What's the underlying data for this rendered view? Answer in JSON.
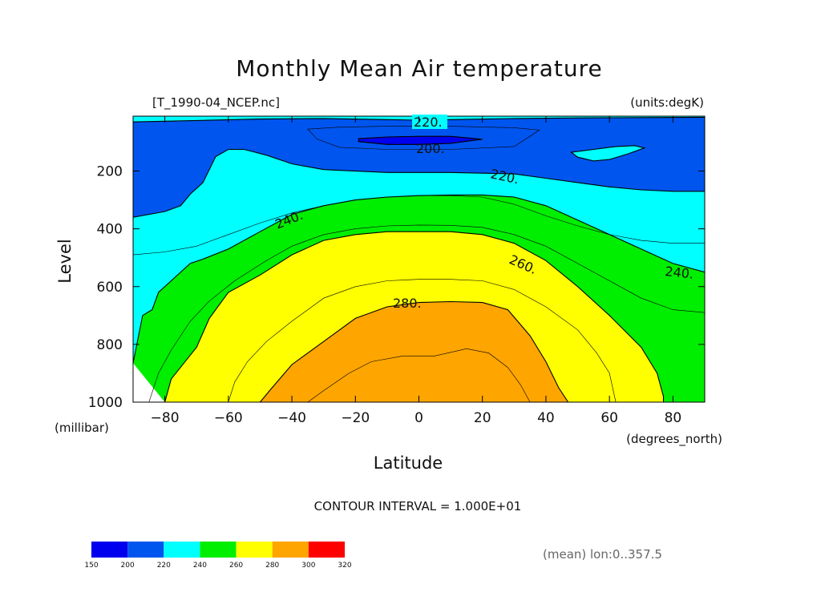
{
  "chart_data": {
    "type": "contour",
    "title": "Monthly Mean Air temperature",
    "file_label": "[T_1990-04_NCEP.nc]",
    "units_label": "(units:degK)",
    "xlabel": "Latitude",
    "ylabel": "Level",
    "x_units": "(degrees_north)",
    "y_units": "(millibar)",
    "xlim": [
      -90,
      90
    ],
    "ylim": [
      1000,
      10
    ],
    "x_ticks": [
      -80,
      -60,
      -40,
      -20,
      0,
      20,
      40,
      60,
      80
    ],
    "x_tick_labels": [
      "−80",
      "−60",
      "−40",
      "−20",
      "0",
      "20",
      "40",
      "60",
      "80"
    ],
    "y_ticks": [
      200,
      400,
      600,
      800,
      1000
    ],
    "y_tick_labels": [
      "200",
      "400",
      "600",
      "800",
      "1000"
    ],
    "contour_interval": "CONTOUR INTERVAL = 1.000E+01",
    "mean_note": "(mean) lon:0..357.5",
    "contour_labels": [
      "220.",
      "200.",
      "220.",
      "240.",
      "260.",
      "240.",
      "280."
    ],
    "levels": [
      {
        "lo": 150,
        "hi": 200,
        "color": "#0000ee"
      },
      {
        "lo": 200,
        "hi": 220,
        "color": "#0055ee"
      },
      {
        "lo": 220,
        "hi": 240,
        "color": "#00ffff"
      },
      {
        "lo": 240,
        "hi": 260,
        "color": "#00ee00"
      },
      {
        "lo": 260,
        "hi": 280,
        "color": "#ffff00"
      },
      {
        "lo": 280,
        "hi": 300,
        "color": "#ffa500"
      },
      {
        "lo": 300,
        "hi": 320,
        "color": "#ff0000"
      }
    ],
    "colorbar_labels": [
      "150",
      "200",
      "220",
      "240",
      "260",
      "280",
      "300",
      "320"
    ],
    "boundaries": {
      "b220_top": [
        [
          -90,
          30
        ],
        [
          -70,
          25
        ],
        [
          -50,
          20
        ],
        [
          -30,
          18
        ],
        [
          -10,
          22
        ],
        [
          0,
          24
        ],
        [
          10,
          22
        ],
        [
          30,
          18
        ],
        [
          50,
          16
        ],
        [
          70,
          15
        ],
        [
          90,
          14
        ]
      ],
      "b220_low": [
        [
          -90,
          360
        ],
        [
          -80,
          340
        ],
        [
          -75,
          320
        ],
        [
          -72,
          280
        ],
        [
          -68,
          240
        ],
        [
          -64,
          150
        ],
        [
          -60,
          125
        ],
        [
          -55,
          125
        ],
        [
          -48,
          145
        ],
        [
          -40,
          175
        ],
        [
          -30,
          195
        ],
        [
          -10,
          205
        ],
        [
          10,
          205
        ],
        [
          30,
          210
        ],
        [
          40,
          225
        ],
        [
          50,
          240
        ],
        [
          60,
          255
        ],
        [
          70,
          265
        ],
        [
          80,
          270
        ],
        [
          90,
          270
        ]
      ],
      "b240": [
        [
          -90,
          865
        ],
        [
          -87,
          700
        ],
        [
          -84,
          680
        ],
        [
          -82,
          620
        ],
        [
          -77,
          570
        ],
        [
          -72,
          520
        ],
        [
          -68,
          505
        ],
        [
          -60,
          470
        ],
        [
          -50,
          410
        ],
        [
          -40,
          350
        ],
        [
          -30,
          320
        ],
        [
          -20,
          300
        ],
        [
          -10,
          290
        ],
        [
          0,
          285
        ],
        [
          10,
          283
        ],
        [
          20,
          283
        ],
        [
          30,
          290
        ],
        [
          40,
          320
        ],
        [
          50,
          370
        ],
        [
          60,
          420
        ],
        [
          70,
          470
        ],
        [
          80,
          520
        ],
        [
          90,
          550
        ]
      ],
      "b260": [
        [
          -80,
          1000
        ],
        [
          -78,
          920
        ],
        [
          -70,
          810
        ],
        [
          -66,
          710
        ],
        [
          -60,
          620
        ],
        [
          -50,
          560
        ],
        [
          -40,
          490
        ],
        [
          -30,
          440
        ],
        [
          -20,
          420
        ],
        [
          -10,
          410
        ],
        [
          0,
          410
        ],
        [
          10,
          410
        ],
        [
          20,
          420
        ],
        [
          30,
          450
        ],
        [
          40,
          510
        ],
        [
          50,
          600
        ],
        [
          60,
          700
        ],
        [
          70,
          810
        ],
        [
          75,
          900
        ],
        [
          77,
          980
        ],
        [
          77,
          1000
        ]
      ],
      "b280": [
        [
          -50,
          1000
        ],
        [
          -47,
          960
        ],
        [
          -40,
          870
        ],
        [
          -30,
          790
        ],
        [
          -20,
          710
        ],
        [
          -10,
          670
        ],
        [
          0,
          655
        ],
        [
          10,
          652
        ],
        [
          20,
          655
        ],
        [
          28,
          680
        ],
        [
          35,
          770
        ],
        [
          40,
          860
        ],
        [
          44,
          950
        ],
        [
          47,
          1000
        ]
      ],
      "b200": [
        [
          -19,
          88
        ],
        [
          -10,
          82
        ],
        [
          0,
          80
        ],
        [
          10,
          80
        ],
        [
          20,
          90
        ],
        [
          10,
          104
        ],
        [
          0,
          108
        ],
        [
          -10,
          108
        ],
        [
          -19,
          98
        ]
      ],
      "island": [
        [
          48,
          135
        ],
        [
          55,
          125
        ],
        [
          62,
          115
        ],
        [
          68,
          112
        ],
        [
          71,
          120
        ],
        [
          66,
          140
        ],
        [
          60,
          160
        ],
        [
          55,
          165
        ],
        [
          50,
          152
        ]
      ]
    },
    "thin_lines": {
      "inner_240": [
        [
          -90,
          490
        ],
        [
          -80,
          480
        ],
        [
          -70,
          460
        ],
        [
          -60,
          420
        ],
        [
          -50,
          380
        ],
        [
          -40,
          345
        ],
        [
          -30,
          320
        ],
        [
          -20,
          300
        ],
        [
          -10,
          290
        ],
        [
          0,
          285
        ],
        [
          10,
          285
        ],
        [
          20,
          290
        ],
        [
          30,
          315
        ],
        [
          40,
          355
        ],
        [
          50,
          390
        ],
        [
          60,
          420
        ],
        [
          70,
          440
        ],
        [
          80,
          450
        ],
        [
          90,
          450
        ]
      ],
      "inner_250": [
        [
          -85,
          1000
        ],
        [
          -82,
          900
        ],
        [
          -78,
          820
        ],
        [
          -72,
          720
        ],
        [
          -66,
          650
        ],
        [
          -58,
          580
        ],
        [
          -48,
          510
        ],
        [
          -40,
          460
        ],
        [
          -30,
          420
        ],
        [
          -20,
          400
        ],
        [
          -10,
          390
        ],
        [
          0,
          387
        ],
        [
          10,
          388
        ],
        [
          20,
          395
        ],
        [
          30,
          420
        ],
        [
          40,
          460
        ],
        [
          50,
          520
        ],
        [
          60,
          580
        ],
        [
          70,
          640
        ],
        [
          80,
          680
        ],
        [
          90,
          690
        ]
      ],
      "inner_270": [
        [
          -60,
          1000
        ],
        [
          -58,
          930
        ],
        [
          -54,
          860
        ],
        [
          -48,
          790
        ],
        [
          -40,
          720
        ],
        [
          -30,
          640
        ],
        [
          -20,
          600
        ],
        [
          -10,
          580
        ],
        [
          0,
          575
        ],
        [
          10,
          575
        ],
        [
          20,
          580
        ],
        [
          30,
          610
        ],
        [
          40,
          670
        ],
        [
          50,
          750
        ],
        [
          56,
          830
        ],
        [
          60,
          900
        ],
        [
          62,
          1000
        ]
      ],
      "inner_290": [
        [
          -35,
          1000
        ],
        [
          -30,
          960
        ],
        [
          -22,
          900
        ],
        [
          -15,
          860
        ],
        [
          -5,
          840
        ],
        [
          5,
          840
        ],
        [
          15,
          815
        ],
        [
          22,
          830
        ],
        [
          28,
          880
        ],
        [
          32,
          940
        ],
        [
          35,
          1000
        ]
      ],
      "inner_210": [
        [
          -35,
          55
        ],
        [
          -25,
          48
        ],
        [
          -10,
          45
        ],
        [
          10,
          45
        ],
        [
          30,
          50
        ],
        [
          38,
          58
        ],
        [
          30,
          115
        ],
        [
          10,
          125
        ],
        [
          -10,
          125
        ],
        [
          -25,
          118
        ],
        [
          -32,
          90
        ]
      ],
      "upper_220": [
        [
          -90,
          22
        ],
        [
          -86,
          10
        ]
      ]
    }
  }
}
